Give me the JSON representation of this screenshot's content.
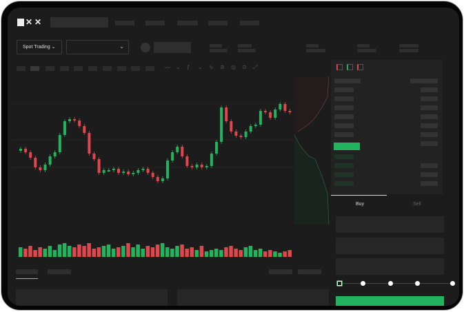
{
  "brand": {
    "logo_text": "OKX"
  },
  "header": {
    "nav_items": [
      "",
      "",
      "",
      "",
      ""
    ]
  },
  "market": {
    "mode_label": "Spot Trading",
    "pair_select": ""
  },
  "orderbook": {
    "view_icons": [
      "orderbook-both-icon",
      "orderbook-bids-icon",
      "orderbook-asks-icon"
    ]
  },
  "trade": {
    "tabs": [
      "Buy",
      "Sell"
    ],
    "active_tab": "Buy",
    "slider_value_percent": 0
  },
  "colors": {
    "up": "#22b35e",
    "down": "#e0474c",
    "background": "#1c1c1c"
  },
  "chart_data": {
    "type": "candlestick",
    "closes": [
      95,
      90,
      82,
      68,
      64,
      72,
      84,
      90,
      115,
      135,
      138,
      136,
      128,
      118,
      88,
      80,
      60,
      64,
      64,
      66,
      60,
      62,
      58,
      60,
      64,
      66,
      60,
      54,
      48,
      52,
      78,
      90,
      98,
      84,
      70,
      68,
      72,
      68,
      70,
      88,
      105,
      155,
      135,
      120,
      114,
      112,
      120,
      128,
      130,
      150,
      148,
      140,
      152,
      160,
      150,
      148
    ],
    "open_first": 92,
    "volumes": [
      7,
      6,
      8,
      5,
      7,
      6,
      8,
      5,
      9,
      10,
      8,
      7,
      9,
      8,
      10,
      6,
      7,
      8,
      9,
      6,
      7,
      8,
      10,
      7,
      9,
      6,
      8,
      7,
      9,
      10,
      7,
      6,
      8,
      9,
      6,
      7,
      5,
      8,
      4,
      5,
      6,
      5,
      7,
      8,
      6,
      5,
      7,
      8,
      5,
      6,
      4,
      5,
      4,
      3,
      4,
      5
    ]
  }
}
